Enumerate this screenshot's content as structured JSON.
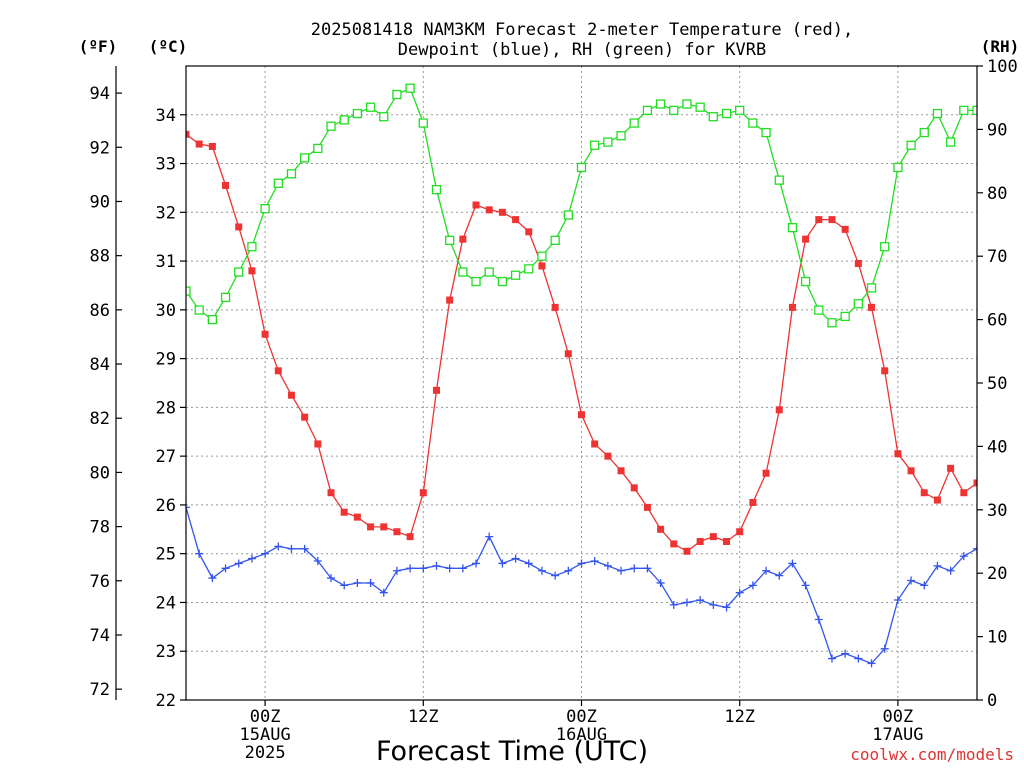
{
  "chart_data": {
    "type": "line",
    "title_line1": "2025081418 NAM3KM Forecast 2-meter Temperature (red),",
    "title_line2": "Dewpoint (blue), RH (green) for KVRB",
    "xlabel": "Forecast Time (UTC)",
    "watermark": "coolwx.com/models",
    "axes": {
      "left_outer": {
        "unit_label": "(ºF)",
        "ylim": [
          71.6,
          95.0
        ],
        "ticks": [
          "72",
          "74",
          "76",
          "78",
          "80",
          "82",
          "84",
          "86",
          "88",
          "90",
          "92",
          "94"
        ]
      },
      "left_inner": {
        "unit_label": "(ºC)",
        "ylim": [
          22,
          35
        ],
        "ticks": [
          "22",
          "23",
          "24",
          "25",
          "26",
          "27",
          "28",
          "29",
          "30",
          "31",
          "32",
          "33",
          "34"
        ]
      },
      "right": {
        "unit_label": "(RH)",
        "ylim": [
          0,
          100
        ],
        "ticks": [
          "0",
          "10",
          "20",
          "30",
          "40",
          "50",
          "60",
          "70",
          "80",
          "90",
          "100"
        ]
      },
      "x": {
        "range_hours": [
          18,
          78
        ],
        "ticks": [
          {
            "hour": 24,
            "line1": "00Z",
            "line2": "15AUG",
            "line3": "2025"
          },
          {
            "hour": 36,
            "line1": "12Z",
            "line2": "",
            "line3": ""
          },
          {
            "hour": 48,
            "line1": "00Z",
            "line2": "16AUG",
            "line3": ""
          },
          {
            "hour": 60,
            "line1": "12Z",
            "line2": "",
            "line3": ""
          },
          {
            "hour": 72,
            "line1": "00Z",
            "line2": "17AUG",
            "line3": ""
          }
        ]
      }
    },
    "grid": true,
    "hours": [
      18,
      19,
      20,
      21,
      22,
      23,
      24,
      25,
      26,
      27,
      28,
      29,
      30,
      31,
      32,
      33,
      34,
      35,
      36,
      37,
      38,
      39,
      40,
      41,
      42,
      43,
      44,
      45,
      46,
      47,
      48,
      49,
      50,
      51,
      52,
      53,
      54,
      55,
      56,
      57,
      58,
      59,
      60,
      61,
      62,
      63,
      64,
      65,
      66,
      67,
      68,
      69,
      70,
      71,
      72,
      73,
      74,
      75,
      76,
      77,
      78
    ],
    "series": [
      {
        "color": "#ee3333",
        "marker": "filled-square",
        "axis": "celsius",
        "values": [
          33.6,
          33.4,
          33.35,
          32.55,
          31.7,
          30.8,
          29.5,
          28.75,
          28.25,
          27.8,
          27.25,
          26.25,
          25.85,
          25.75,
          25.55,
          25.55,
          25.45,
          25.35,
          26.25,
          28.35,
          30.2,
          31.45,
          32.15,
          32.05,
          32.0,
          31.85,
          31.6,
          30.9,
          30.05,
          29.1,
          27.85,
          27.25,
          27.0,
          26.7,
          26.35,
          25.95,
          25.5,
          25.2,
          25.05,
          25.25,
          25.35,
          25.25,
          25.45,
          26.05,
          26.65,
          27.95,
          30.05,
          31.45,
          31.85,
          31.85,
          31.65,
          30.95,
          30.05,
          28.75,
          27.05,
          26.7,
          26.25,
          26.1,
          26.75,
          26.25,
          26.45
        ]
      },
      {
        "color": "#3355ee",
        "marker": "plus",
        "axis": "celsius",
        "values": [
          25.95,
          25.0,
          24.5,
          24.7,
          24.8,
          24.9,
          25.0,
          25.15,
          25.1,
          25.1,
          24.85,
          24.5,
          24.35,
          24.4,
          24.4,
          24.2,
          24.65,
          24.7,
          24.7,
          24.75,
          24.7,
          24.7,
          24.8,
          25.35,
          24.8,
          24.9,
          24.8,
          24.65,
          24.55,
          24.65,
          24.8,
          24.85,
          24.75,
          24.65,
          24.7,
          24.7,
          24.4,
          23.95,
          24.0,
          24.05,
          23.95,
          23.9,
          24.2,
          24.35,
          24.65,
          24.55,
          24.8,
          24.35,
          23.65,
          22.85,
          22.95,
          22.85,
          22.75,
          23.05,
          24.05,
          24.45,
          24.35,
          24.75,
          24.65,
          24.95,
          25.1
        ]
      },
      {
        "color": "#22dd22",
        "marker": "open-square",
        "axis": "rh",
        "values": [
          64.5,
          61.5,
          60.0,
          63.5,
          67.5,
          71.5,
          77.5,
          81.5,
          83.0,
          85.5,
          87.0,
          90.5,
          91.5,
          92.5,
          93.5,
          92.0,
          95.5,
          96.5,
          91.0,
          80.5,
          72.5,
          67.5,
          66.0,
          67.5,
          66.0,
          67.0,
          68.0,
          70.0,
          72.5,
          76.5,
          84.0,
          87.5,
          88.0,
          89.0,
          91.0,
          93.0,
          94.0,
          93.0,
          94.0,
          93.5,
          92.0,
          92.5,
          93.0,
          91.0,
          89.5,
          82.0,
          74.5,
          66.0,
          61.5,
          59.5,
          60.5,
          62.5,
          65.0,
          71.5,
          84.0,
          87.5,
          89.5,
          92.5,
          88.0,
          93.0,
          93.0
        ]
      }
    ]
  }
}
